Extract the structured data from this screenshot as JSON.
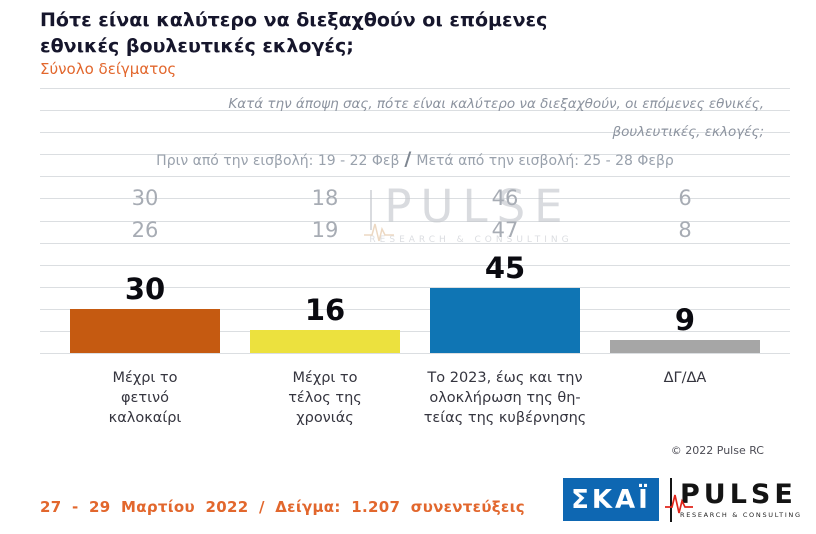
{
  "header": {
    "title": "Πότε είναι καλύτερο να διεξαχθούν οι επόμενες εθνικές βουλευτικές εκλογές;",
    "subtitle": "Σύνολο δείγματος"
  },
  "question": {
    "line1": "Κατά την άποψη σας, πότε είναι καλύτερο να διεξαχθούν, οι επόμενες εθνικές,",
    "line2": "βουλευτικές, εκλογές;"
  },
  "period": {
    "before": "Πριν από την εισβολή: 19 - 22 Φεβ",
    "separator": "/",
    "after": "Μετά από την εισβολή: 25 - 28 Φεβρ"
  },
  "chart_data": {
    "type": "bar",
    "title": "Πότε είναι καλύτερο να διεξαχθούν οι επόμενες εθνικές βουλευτικές εκλογές; — Σύνολο δείγματος",
    "xlabel": "",
    "ylabel": "",
    "ylim": [
      0,
      50
    ],
    "grid": true,
    "legend_position": "none",
    "categories": [
      "Μέχρι το φετινό καλοκαίρι",
      "Μέχρι το τέλος της χρονιάς",
      "Το 2023, έως και την ολοκλήρωση της θητείας της κυβέρνησης",
      "ΔΓ/ΔΑ"
    ],
    "category_lines": [
      [
        "Μέχρι το",
        "φετινό",
        "καλοκαίρι"
      ],
      [
        "Μέχρι το",
        "τέλος της",
        "χρονιάς"
      ],
      [
        "Το 2023, έως και την",
        "ολοκλήρωση της θη-",
        "τείας της κυβέρνησης"
      ],
      [
        "ΔΓ/ΔΑ"
      ]
    ],
    "series": [
      {
        "name": "Πριν από την εισβολή: 19 - 22 Φεβ",
        "values": [
          30,
          18,
          46,
          6
        ]
      },
      {
        "name": "Μετά από την εισβολή: 25 - 28 Φεβρ",
        "values": [
          26,
          19,
          47,
          8
        ]
      },
      {
        "name": "Σύνολο δείγματος 27 - 29 Μαρτίου 2022",
        "values": [
          30,
          16,
          45,
          9
        ]
      }
    ],
    "bar_colors": [
      "#c55a11",
      "#ece13e",
      "#0f75b4",
      "#a6a6a6"
    ]
  },
  "watermark": {
    "brand": "PULSE",
    "tagline": "RESEARCH & CONSULTING"
  },
  "copyright": "© 2022 Pulse RC",
  "footer": {
    "note": "27 - 29 Μαρτίου 2022 / Δείγμα: 1.207 συνεντεύξεις",
    "skai_logo": "ΣΚΑΪ",
    "pulse_logo": "PULSE",
    "pulse_tagline": "RESEARCH & CONSULTING"
  }
}
